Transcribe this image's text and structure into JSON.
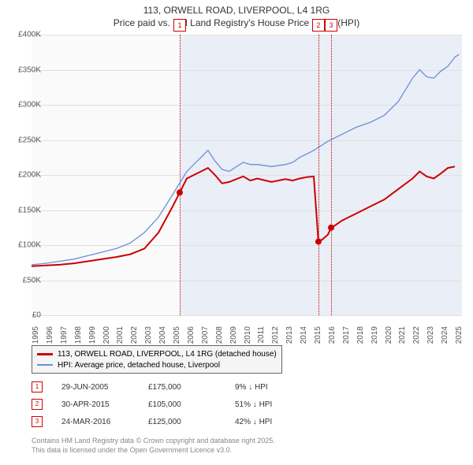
{
  "title_line1": "113, ORWELL ROAD, LIVERPOOL, L4 1RG",
  "title_line2": "Price paid vs. HM Land Registry's House Price Index (HPI)",
  "chart": {
    "type": "line",
    "xlim": [
      1995,
      2025.5
    ],
    "ylim": [
      0,
      400000
    ],
    "ytick_step": 50000,
    "y_labels": [
      "£0",
      "£50K",
      "£100K",
      "£150K",
      "£200K",
      "£250K",
      "£300K",
      "£350K",
      "£400K"
    ],
    "x_years": [
      1995,
      1996,
      1997,
      1998,
      1999,
      2000,
      2001,
      2002,
      2003,
      2004,
      2005,
      2006,
      2007,
      2008,
      2009,
      2010,
      2011,
      2012,
      2013,
      2014,
      2015,
      2016,
      2017,
      2018,
      2019,
      2020,
      2021,
      2022,
      2023,
      2024,
      2025
    ],
    "background_color": "#fafafa",
    "grid_color": "#e0e0e0",
    "shaded_from_year": 2005.5,
    "shaded_color": "rgba(120,160,220,0.12)",
    "series": {
      "price_paid": {
        "color": "#cc0000",
        "width": 2,
        "data": [
          [
            1995,
            70000
          ],
          [
            1996,
            71000
          ],
          [
            1997,
            72000
          ],
          [
            1998,
            74000
          ],
          [
            1999,
            77000
          ],
          [
            2000,
            80000
          ],
          [
            2001,
            83000
          ],
          [
            2002,
            87000
          ],
          [
            2003,
            95000
          ],
          [
            2004,
            118000
          ],
          [
            2005,
            155000
          ],
          [
            2005.5,
            175000
          ],
          [
            2006,
            195000
          ],
          [
            2007,
            205000
          ],
          [
            2007.5,
            210000
          ],
          [
            2008,
            200000
          ],
          [
            2008.5,
            188000
          ],
          [
            2009,
            190000
          ],
          [
            2010,
            198000
          ],
          [
            2010.5,
            192000
          ],
          [
            2011,
            195000
          ],
          [
            2012,
            190000
          ],
          [
            2013,
            194000
          ],
          [
            2013.5,
            192000
          ],
          [
            2014,
            195000
          ],
          [
            2014.5,
            197000
          ],
          [
            2015.0,
            198000
          ],
          [
            2015.33,
            105000
          ],
          [
            2015.6,
            108000
          ],
          [
            2016.0,
            115000
          ],
          [
            2016.23,
            125000
          ],
          [
            2016.5,
            128000
          ],
          [
            2017,
            135000
          ],
          [
            2018,
            145000
          ],
          [
            2019,
            155000
          ],
          [
            2020,
            165000
          ],
          [
            2021,
            180000
          ],
          [
            2022,
            195000
          ],
          [
            2022.5,
            205000
          ],
          [
            2023,
            198000
          ],
          [
            2023.5,
            195000
          ],
          [
            2024,
            202000
          ],
          [
            2024.5,
            210000
          ],
          [
            2025,
            212000
          ]
        ]
      },
      "hpi": {
        "color": "#6a8fd8",
        "width": 1.3,
        "data": [
          [
            1995,
            72000
          ],
          [
            1996,
            74000
          ],
          [
            1997,
            77000
          ],
          [
            1998,
            80000
          ],
          [
            1999,
            85000
          ],
          [
            2000,
            90000
          ],
          [
            2001,
            95000
          ],
          [
            2002,
            103000
          ],
          [
            2003,
            118000
          ],
          [
            2004,
            140000
          ],
          [
            2005,
            172000
          ],
          [
            2006,
            205000
          ],
          [
            2007,
            225000
          ],
          [
            2007.5,
            235000
          ],
          [
            2008,
            220000
          ],
          [
            2008.5,
            208000
          ],
          [
            2009,
            205000
          ],
          [
            2010,
            218000
          ],
          [
            2010.5,
            215000
          ],
          [
            2011,
            215000
          ],
          [
            2012,
            212000
          ],
          [
            2013,
            215000
          ],
          [
            2013.5,
            218000
          ],
          [
            2014,
            225000
          ],
          [
            2015,
            235000
          ],
          [
            2016,
            248000
          ],
          [
            2017,
            258000
          ],
          [
            2018,
            268000
          ],
          [
            2019,
            275000
          ],
          [
            2020,
            285000
          ],
          [
            2021,
            305000
          ],
          [
            2022,
            338000
          ],
          [
            2022.5,
            350000
          ],
          [
            2023,
            340000
          ],
          [
            2023.5,
            338000
          ],
          [
            2024,
            348000
          ],
          [
            2024.5,
            355000
          ],
          [
            2025,
            368000
          ],
          [
            2025.3,
            372000
          ]
        ]
      }
    },
    "markers": [
      {
        "n": "1",
        "year": 2005.5,
        "y": 175000
      },
      {
        "n": "2",
        "year": 2015.33,
        "y": 105000
      },
      {
        "n": "3",
        "year": 2016.23,
        "y": 125000
      }
    ]
  },
  "legend": {
    "items": [
      {
        "color": "#cc0000",
        "label": "113, ORWELL ROAD, LIVERPOOL, L4 1RG (detached house)"
      },
      {
        "color": "#6a8fd8",
        "label": "HPI: Average price, detached house, Liverpool"
      }
    ]
  },
  "sales": [
    {
      "n": "1",
      "date": "29-JUN-2005",
      "price": "£175,000",
      "pct": "9% ↓ HPI"
    },
    {
      "n": "2",
      "date": "30-APR-2015",
      "price": "£105,000",
      "pct": "51% ↓ HPI"
    },
    {
      "n": "3",
      "date": "24-MAR-2016",
      "price": "£125,000",
      "pct": "42% ↓ HPI"
    }
  ],
  "footnote_line1": "Contains HM Land Registry data © Crown copyright and database right 2025.",
  "footnote_line2": "This data is licensed under the Open Government Licence v3.0."
}
